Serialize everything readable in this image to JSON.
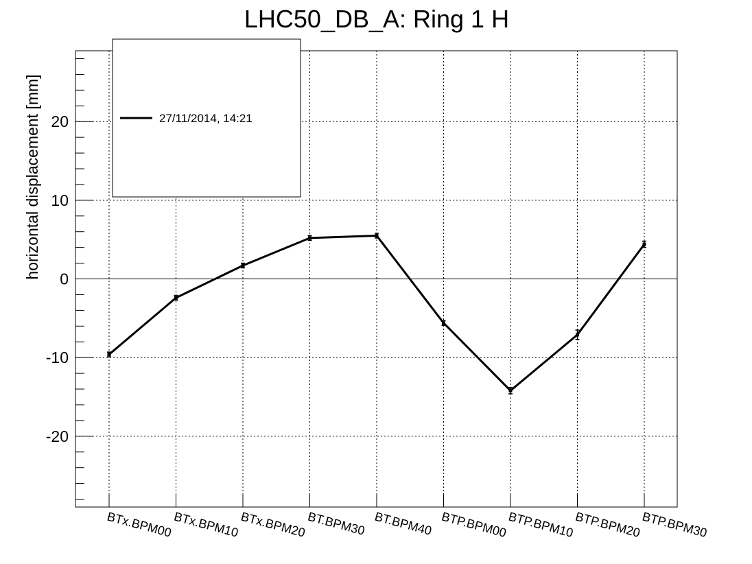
{
  "chart_data": {
    "type": "line",
    "title": "LHC50_DB_A: Ring 1 H",
    "ylabel": "horizontal displacement [mm]",
    "xlabel": "",
    "categories": [
      "BTx.BPM00",
      "BTx.BPM10",
      "BTx.BPM20",
      "BT.BPM30",
      "BT.BPM40",
      "BTP.BPM00",
      "BTP.BPM10",
      "BTP.BPM20",
      "BTP.BPM30"
    ],
    "series": [
      {
        "name": "27/11/2014, 14:21",
        "values": [
          -9.6,
          -2.4,
          1.7,
          5.2,
          5.5,
          -5.6,
          -14.2,
          -7.1,
          4.4
        ],
        "errors": [
          0.3,
          0.3,
          0.3,
          0.3,
          0.3,
          0.3,
          0.4,
          0.6,
          0.4
        ],
        "color": "#000000"
      }
    ],
    "ylim": [
      -29,
      29
    ],
    "yticks": [
      -20,
      -10,
      0,
      10,
      20
    ],
    "y_minor_step": 2,
    "grid": true,
    "zero_line": true,
    "legend_placement": "top-left"
  }
}
